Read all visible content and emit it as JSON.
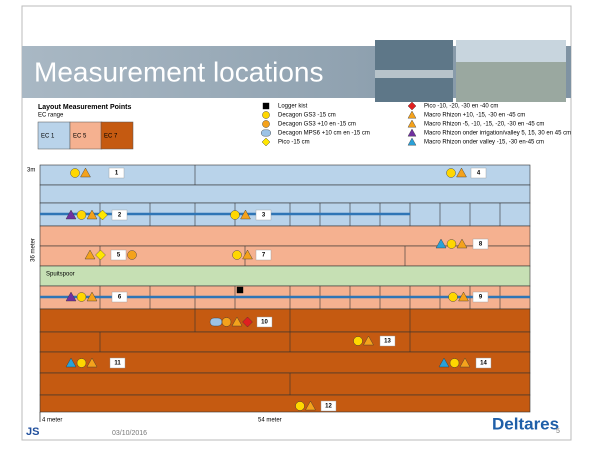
{
  "header": {
    "title": "Measurement locations"
  },
  "layout": {
    "heading": "Layout Measurement Points",
    "ec_range": "EC range",
    "ec_items": [
      "EC 1",
      "EC 5",
      "EC 7"
    ]
  },
  "legend": {
    "left": [
      "Logger kist",
      "Decagon GS3 -15 cm",
      "Decagon GS3 +10 en -15 cm",
      "Decagon MPS6 +10 cm en -15 cm",
      "Pico -15 cm"
    ],
    "right": [
      "Pico -10, -20, -30 en -40 cm",
      "Macro Rhizon +10, -15, -30 en -45 cm",
      "Macro Rhizon -5, -10, -15, -20, -30 en -45 cm",
      "Macro Rhizon onder irrigation/valley 5, 15, 30 en 45 cm",
      "Macro Rhizon onder valley -15, -30 en-45 cm"
    ]
  },
  "map": {
    "height_top": "3m",
    "height_total": "36 meter",
    "width_left": "4 meter",
    "width_total": "54 meter",
    "strip": "Spuitspoor",
    "points": [
      "1",
      "2",
      "3",
      "4",
      "5",
      "6",
      "7",
      "8",
      "9",
      "10",
      "11",
      "12",
      "13",
      "14"
    ]
  },
  "footer": {
    "date": "03/10/2016",
    "logo": "Deltares",
    "page": "5"
  }
}
